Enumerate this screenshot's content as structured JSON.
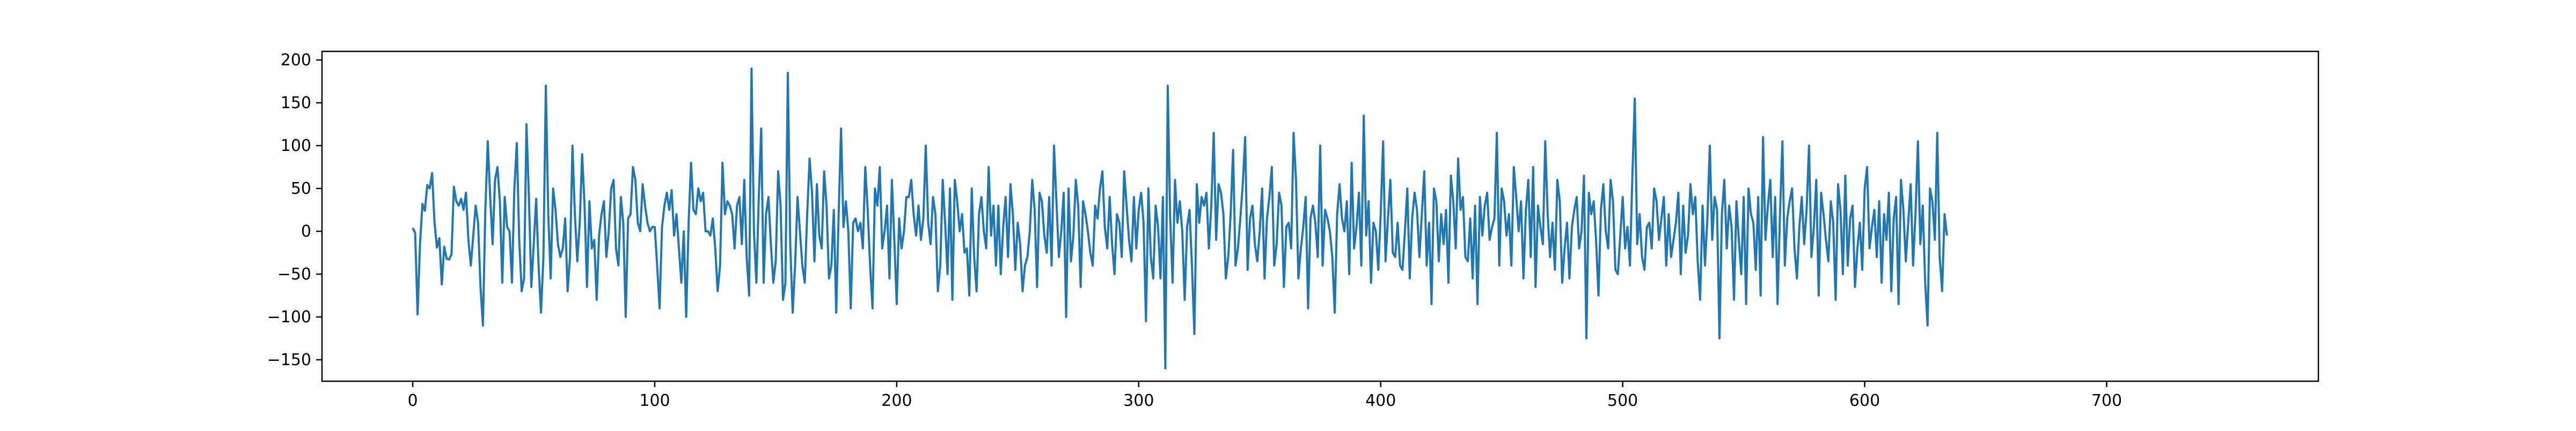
{
  "chart_data": {
    "type": "line",
    "title": "",
    "xlabel": "",
    "ylabel": "",
    "xlim": [
      -37.5,
      787.5
    ],
    "ylim": [
      -175,
      210
    ],
    "xticks": [
      0,
      100,
      200,
      300,
      400,
      500,
      600,
      700
    ],
    "yticks": [
      -150,
      -100,
      -50,
      0,
      50,
      100,
      150,
      200
    ],
    "grid": false,
    "legend": "none",
    "line_color": "#1f77b4",
    "series": [
      {
        "x_start": 0,
        "x_step": 1,
        "values": [
          4,
          -2,
          -97,
          -15,
          32,
          24,
          54,
          50,
          68,
          10,
          -19,
          -8,
          -62,
          -18,
          -32,
          -33,
          -27,
          52,
          35,
          30,
          38,
          25,
          45,
          -10,
          -40,
          -5,
          30,
          10,
          -65,
          -110,
          25,
          105,
          40,
          -15,
          60,
          75,
          35,
          -60,
          40,
          5,
          0,
          -60,
          50,
          103,
          -10,
          -70,
          -55,
          125,
          40,
          -65,
          -15,
          38,
          -40,
          -95,
          -30,
          170,
          20,
          -55,
          50,
          25,
          -15,
          -30,
          -20,
          15,
          -70,
          -30,
          100,
          20,
          -35,
          10,
          90,
          30,
          -65,
          35,
          -20,
          -10,
          -80,
          -5,
          20,
          35,
          -30,
          0,
          50,
          60,
          -20,
          -40,
          40,
          10,
          -100,
          15,
          20,
          75,
          60,
          10,
          0,
          55,
          30,
          10,
          0,
          5,
          5,
          -40,
          -90,
          5,
          30,
          45,
          25,
          48,
          -5,
          20,
          -20,
          -60,
          0,
          -100,
          10,
          80,
          25,
          20,
          50,
          35,
          45,
          0,
          0,
          -5,
          15,
          -20,
          -70,
          -40,
          80,
          20,
          35,
          30,
          20,
          -20,
          30,
          40,
          -15,
          60,
          -30,
          -75,
          190,
          0,
          -60,
          40,
          120,
          -60,
          20,
          40,
          -15,
          -60,
          -35,
          70,
          30,
          -80,
          -60,
          185,
          -15,
          -95,
          -40,
          40,
          0,
          -40,
          -60,
          20,
          85,
          45,
          -35,
          55,
          -5,
          -20,
          70,
          30,
          -55,
          -40,
          25,
          -95,
          20,
          120,
          5,
          35,
          0,
          -90,
          10,
          15,
          0,
          10,
          -20,
          75,
          25,
          -40,
          -90,
          50,
          30,
          75,
          -20,
          0,
          30,
          -55,
          60,
          -10,
          -85,
          15,
          -20,
          0,
          40,
          40,
          60,
          20,
          -5,
          30,
          -10,
          15,
          100,
          10,
          -15,
          40,
          20,
          -70,
          -40,
          60,
          10,
          -50,
          50,
          -80,
          60,
          35,
          0,
          20,
          -25,
          -20,
          -75,
          50,
          -30,
          -70,
          20,
          40,
          0,
          -20,
          75,
          -5,
          30,
          -40,
          30,
          -50,
          5,
          40,
          -30,
          55,
          20,
          -45,
          10,
          -15,
          -70,
          -40,
          -30,
          0,
          60,
          25,
          -65,
          45,
          35,
          -5,
          -25,
          40,
          -40,
          100,
          35,
          -30,
          0,
          45,
          -100,
          50,
          -35,
          -5,
          60,
          30,
          -65,
          35,
          20,
          0,
          -25,
          -40,
          30,
          15,
          50,
          70,
          5,
          -20,
          40,
          -15,
          -50,
          20,
          10,
          -30,
          70,
          30,
          -10,
          -35,
          40,
          -20,
          25,
          45,
          10,
          -105,
          50,
          -30,
          -55,
          30,
          5,
          -55,
          40,
          -160,
          170,
          15,
          -60,
          60,
          10,
          35,
          0,
          -80,
          5,
          25,
          -40,
          -120,
          55,
          10,
          40,
          30,
          45,
          -20,
          30,
          115,
          -10,
          55,
          45,
          20,
          -55,
          -30,
          20,
          95,
          -40,
          -20,
          15,
          55,
          110,
          -45,
          15,
          30,
          -15,
          -35,
          0,
          50,
          -55,
          15,
          40,
          75,
          -40,
          -15,
          45,
          30,
          -65,
          5,
          10,
          -20,
          115,
          60,
          -55,
          -20,
          5,
          40,
          -90,
          15,
          30,
          10,
          -30,
          100,
          -40,
          25,
          15,
          0,
          -30,
          -95,
          20,
          55,
          15,
          0,
          35,
          -50,
          80,
          -20,
          5,
          45,
          -40,
          135,
          -5,
          35,
          -60,
          10,
          0,
          -45,
          20,
          105,
          -35,
          15,
          60,
          -25,
          -30,
          10,
          -40,
          -45,
          0,
          50,
          -55,
          15,
          45,
          25,
          -30,
          20,
          70,
          -40,
          10,
          -85,
          50,
          35,
          -35,
          20,
          -15,
          25,
          -60,
          65,
          35,
          -20,
          85,
          25,
          40,
          -30,
          -35,
          15,
          -55,
          30,
          -85,
          40,
          -5,
          30,
          45,
          -10,
          5,
          15,
          115,
          -40,
          50,
          35,
          -5,
          20,
          -40,
          75,
          40,
          0,
          35,
          -55,
          25,
          60,
          -30,
          75,
          -65,
          30,
          5,
          -15,
          105,
          20,
          -30,
          10,
          -45,
          60,
          35,
          -60,
          -20,
          10,
          -55,
          5,
          25,
          40,
          -20,
          0,
          65,
          -125,
          45,
          20,
          35,
          -10,
          -75,
          25,
          55,
          0,
          -20,
          60,
          35,
          -45,
          -50,
          -5,
          40,
          -20,
          5,
          -40,
          65,
          155,
          -15,
          20,
          -30,
          -45,
          5,
          10,
          -20,
          50,
          35,
          -10,
          15,
          40,
          -40,
          20,
          -30,
          -10,
          10,
          45,
          -50,
          30,
          -25,
          -5,
          55,
          20,
          40,
          -35,
          -80,
          30,
          -40,
          15,
          100,
          -10,
          40,
          25,
          -125,
          20,
          60,
          -20,
          30,
          5,
          -80,
          35,
          -10,
          -50,
          40,
          -85,
          50,
          20,
          10,
          -45,
          40,
          -75,
          110,
          -10,
          30,
          60,
          -30,
          40,
          -85,
          20,
          105,
          -40,
          15,
          35,
          50,
          -20,
          -55,
          5,
          40,
          -15,
          25,
          100,
          -30,
          5,
          60,
          -75,
          45,
          20,
          -10,
          -35,
          35,
          10,
          -80,
          55,
          25,
          -50,
          65,
          -40,
          15,
          30,
          -65,
          -20,
          10,
          -45,
          50,
          75,
          -20,
          5,
          25,
          -30,
          35,
          -60,
          20,
          -10,
          45,
          -70,
          15,
          40,
          -85,
          60,
          25,
          -35,
          10,
          55,
          -40,
          20,
          105,
          -15,
          30,
          -60,
          -110,
          50,
          35,
          -10,
          115,
          -30,
          -70,
          20,
          -5
        ]
      }
    ]
  }
}
